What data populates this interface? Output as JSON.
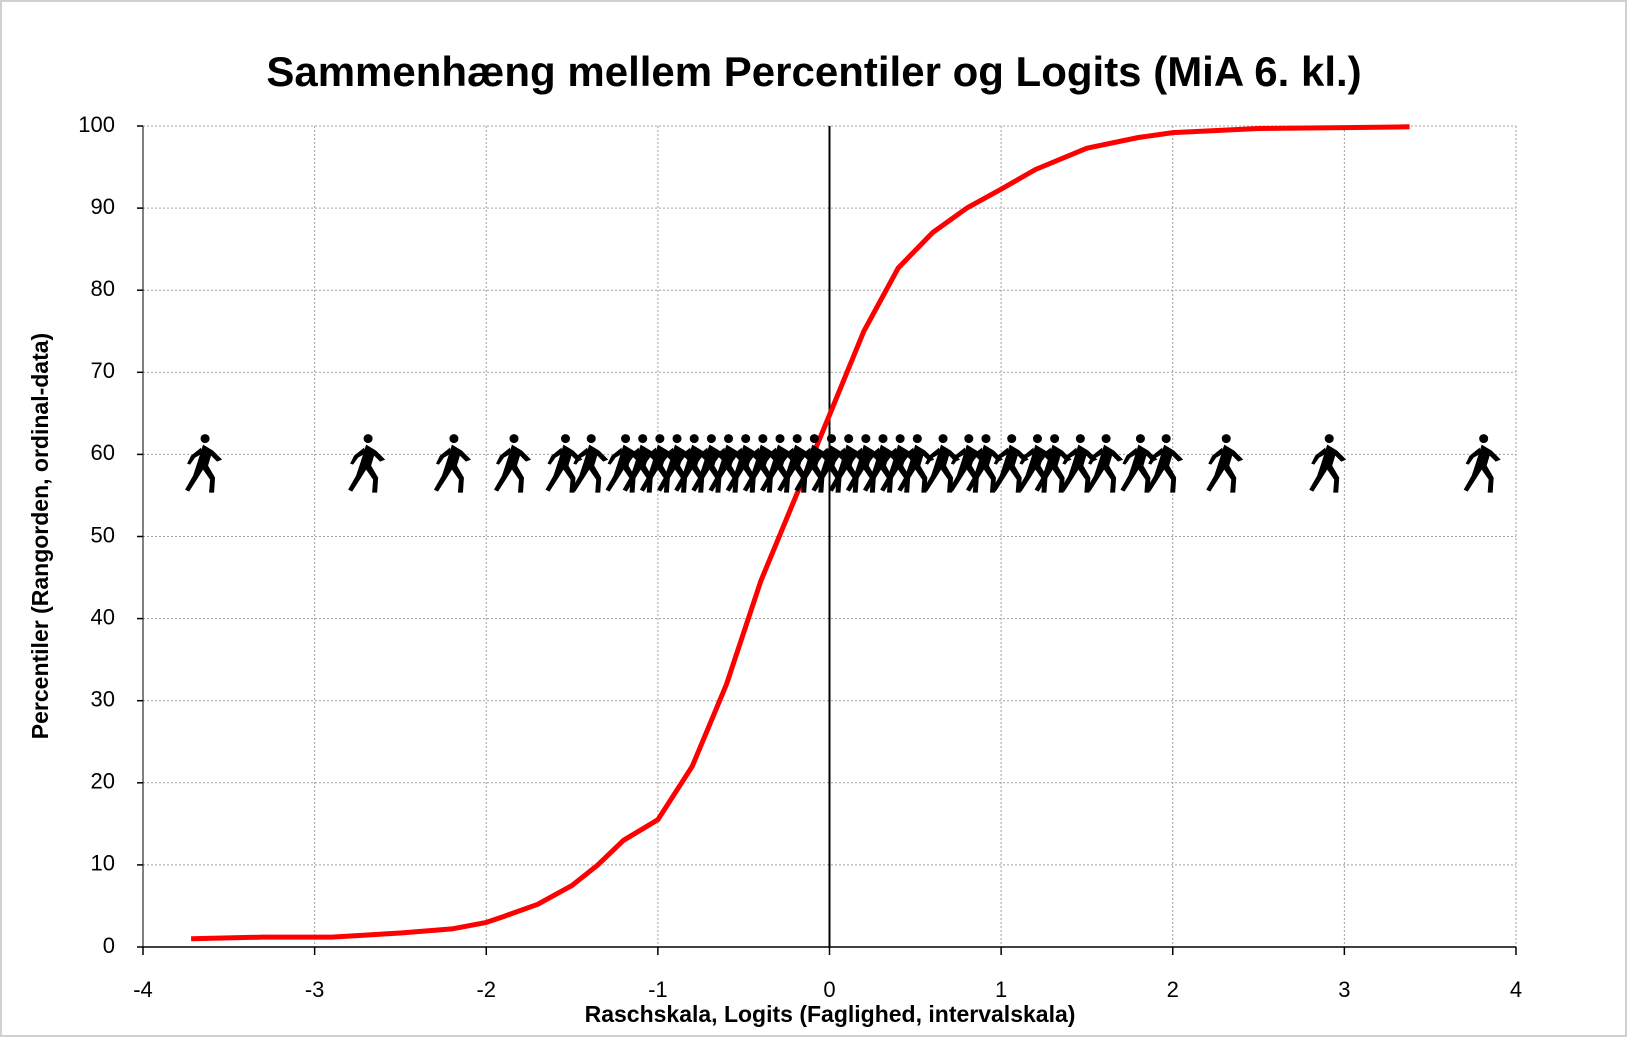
{
  "chart_data": {
    "type": "line",
    "title": "Sammenhæng mellem Percentiler og Logits (MiA 6. kl.)",
    "x_label": "Raschskala, Logits (Faglighed, intervalskala)",
    "y_label": "Percentiler (Rangorden, ordinal-data)",
    "xlim": [
      -4,
      4
    ],
    "xticks": [
      -4,
      -3,
      -2,
      -1,
      0,
      1,
      2,
      3,
      4
    ],
    "ylim": [
      0,
      100
    ],
    "yticks": [
      0,
      10,
      20,
      30,
      40,
      50,
      60,
      70,
      80,
      90,
      100
    ],
    "grid": true,
    "series": [
      {
        "type": "line",
        "color": "#ff0000",
        "x": [
          -3.72,
          -3.3,
          -2.9,
          -2.5,
          -2.2,
          -2.0,
          -1.9,
          -1.7,
          -1.5,
          -1.35,
          -1.2,
          -1.0,
          -0.8,
          -0.6,
          -0.4,
          -0.2,
          0,
          0.2,
          0.4,
          0.6,
          0.8,
          1.0,
          1.2,
          1.5,
          1.8,
          2.0,
          2.5,
          3.0,
          3.38
        ],
        "values": [
          1,
          1.2,
          1.2,
          1.7,
          2.2,
          3,
          3.7,
          5.2,
          7.5,
          10,
          13,
          15.5,
          22,
          32,
          44.6,
          54.7,
          64.8,
          75,
          82.7,
          87,
          90,
          92.3,
          94.7,
          97.3,
          98.6,
          99.2,
          99.7,
          99.8,
          99.9
        ]
      },
      {
        "type": "scatter",
        "color": "#000000",
        "x": [
          -3.65,
          -2.7,
          -2.2,
          -1.85,
          -1.55,
          -1.4,
          -1.2,
          -1.1,
          -1.0,
          -0.9,
          -0.8,
          -0.7,
          -0.6,
          -0.5,
          -0.4,
          -0.3,
          -0.2,
          -0.1,
          0,
          0.1,
          0.2,
          0.3,
          0.4,
          0.5,
          0.65,
          0.8,
          0.9,
          1.05,
          1.2,
          1.3,
          1.45,
          1.6,
          1.8,
          1.95,
          2.3,
          2.9,
          3.8
        ],
        "values": [
          59,
          59,
          59,
          59,
          59,
          59,
          59,
          59,
          59,
          59,
          59,
          59,
          59,
          59,
          59,
          59,
          59,
          59,
          59,
          59,
          59,
          59,
          59,
          59,
          59,
          59,
          59,
          59,
          59,
          59,
          59,
          59,
          59,
          59,
          59,
          59,
          59
        ]
      }
    ]
  }
}
